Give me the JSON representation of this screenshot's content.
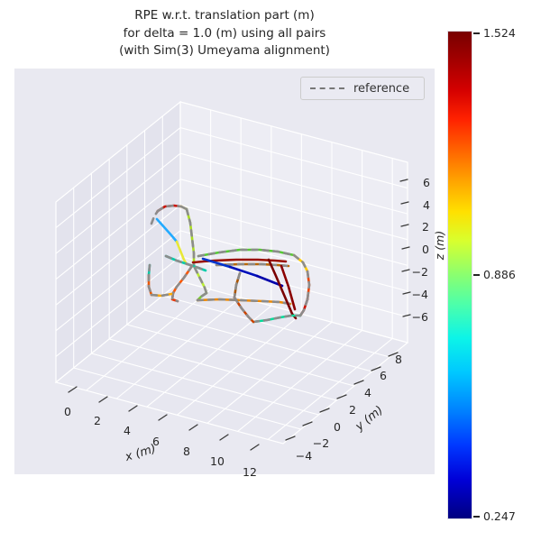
{
  "title_lines": [
    "RPE w.r.t. translation part (m)",
    "for delta = 1.0 (m) using all pairs",
    "(with Sim(3) Umeyama alignment)"
  ],
  "legend": {
    "items": [
      {
        "label": "reference",
        "line_style": "dashed",
        "color": "#777777"
      }
    ]
  },
  "chart_data": {
    "type": "line",
    "plot_kind": "3d-trajectory-colormapped",
    "title": "RPE w.r.t. translation part (m) for delta = 1.0 (m) using all pairs (with Sim(3) Umeyama alignment)",
    "xlabel": "x (m)",
    "ylabel": "y (m)",
    "zlabel": "z (m)",
    "x_ticks": [
      "0",
      "2",
      "4",
      "6",
      "8",
      "10",
      "12"
    ],
    "y_ticks": [
      "−4",
      "−2",
      "0",
      "2",
      "4",
      "6",
      "8"
    ],
    "z_ticks": [
      "6",
      "4",
      "2",
      "0",
      "−2",
      "−4",
      "−6"
    ],
    "x_range": [
      0,
      12
    ],
    "y_range": [
      -4,
      8
    ],
    "z_range": [
      -6,
      6
    ],
    "grid": true,
    "legend_position": "upper right",
    "colorbar": {
      "colormap": "jet",
      "max": 1.524,
      "mid": 0.886,
      "min": 0.247,
      "labels": [
        "1.524",
        "0.886",
        "0.247"
      ]
    },
    "series_note": "estimate trajectory colored by RPE value; reference trajectory gray dashed",
    "segments": [
      {
        "c": "#999999",
        "mode": "ref",
        "pts": [
          [
            168,
            248
          ],
          [
            171,
            240
          ],
          [
            175,
            234
          ]
        ]
      },
      {
        "c": "#cc1100",
        "mode": "both",
        "pts": [
          [
            175,
            234
          ],
          [
            183,
            229
          ],
          [
            193,
            228
          ],
          [
            201,
            229
          ]
        ]
      },
      {
        "c": "#ffdd00",
        "mode": "both",
        "pts": [
          [
            201,
            229
          ],
          [
            207,
            232
          ]
        ]
      },
      {
        "c": "#aadd22",
        "mode": "both",
        "pts": [
          [
            207,
            232
          ],
          [
            211,
            247
          ],
          [
            213,
            264
          ],
          [
            215,
            281
          ],
          [
            215,
            295
          ]
        ]
      },
      {
        "c": "#22aaff",
        "mode": "solid",
        "pts": [
          [
            174,
            243
          ],
          [
            183,
            253
          ],
          [
            191,
            262
          ],
          [
            196,
            268
          ]
        ]
      },
      {
        "c": "#e8e838",
        "mode": "solid",
        "pts": [
          [
            196,
            268
          ],
          [
            200,
            278
          ],
          [
            204,
            288
          ],
          [
            207,
            293
          ]
        ]
      },
      {
        "c": "#00ccaa",
        "mode": "both",
        "pts": [
          [
            184,
            284
          ],
          [
            196,
            289
          ],
          [
            208,
            293
          ],
          [
            220,
            297
          ],
          [
            228,
            300
          ]
        ]
      },
      {
        "c": "#ff5500",
        "mode": "both",
        "pts": [
          [
            213,
            295
          ],
          [
            204,
            308
          ],
          [
            196,
            318
          ],
          [
            192,
            325
          ]
        ]
      },
      {
        "c": "#ee3300",
        "mode": "both",
        "pts": [
          [
            192,
            325
          ],
          [
            191,
            332
          ],
          [
            197,
            334
          ]
        ]
      },
      {
        "c": "#00ccaa",
        "mode": "both",
        "pts": [
          [
            166,
            294
          ],
          [
            165,
            305
          ]
        ]
      },
      {
        "c": "#ee5500",
        "mode": "both",
        "pts": [
          [
            165,
            305
          ],
          [
            165,
            318
          ],
          [
            168,
            327
          ]
        ]
      },
      {
        "c": "#ffaa00",
        "mode": "both",
        "pts": [
          [
            168,
            327
          ],
          [
            179,
            328
          ],
          [
            190,
            326
          ]
        ]
      },
      {
        "c": "#bbee33",
        "mode": "both",
        "pts": [
          [
            216,
            297
          ],
          [
            222,
            309
          ],
          [
            227,
            319
          ],
          [
            229,
            325
          ]
        ]
      },
      {
        "c": "#77cc33",
        "mode": "both",
        "pts": [
          [
            229,
            325
          ],
          [
            223,
            329
          ],
          [
            219,
            333
          ]
        ]
      },
      {
        "c": "#ee8800",
        "mode": "both",
        "pts": [
          [
            219,
            333
          ],
          [
            243,
            332
          ],
          [
            267,
            333
          ],
          [
            291,
            334
          ],
          [
            310,
            335
          ],
          [
            322,
            337
          ]
        ]
      },
      {
        "c": "#991100",
        "mode": "solid",
        "pts": [
          [
            214,
            291
          ],
          [
            238,
            289
          ],
          [
            262,
            288
          ],
          [
            286,
            288
          ],
          [
            305,
            289
          ],
          [
            317,
            290
          ]
        ]
      },
      {
        "c": "#bb6600",
        "mode": "both",
        "pts": [
          [
            240,
            294
          ],
          [
            266,
            293
          ],
          [
            290,
            293
          ],
          [
            308,
            294
          ],
          [
            320,
            295
          ]
        ]
      },
      {
        "c": "#55cc33",
        "mode": "both",
        "pts": [
          [
            220,
            284
          ],
          [
            243,
            280
          ],
          [
            266,
            277
          ],
          [
            288,
            277
          ],
          [
            308,
            279
          ],
          [
            326,
            283
          ]
        ]
      },
      {
        "c": "#0033cc",
        "mode": "solid",
        "pts": [
          [
            225,
            287
          ],
          [
            255,
            296
          ]
        ]
      },
      {
        "c": "#0011bb",
        "mode": "solid",
        "pts": [
          [
            255,
            296
          ],
          [
            285,
            306
          ]
        ]
      },
      {
        "c": "#0000aa",
        "mode": "solid",
        "pts": [
          [
            285,
            306
          ],
          [
            313,
            317
          ]
        ]
      },
      {
        "c": "#7a0000",
        "mode": "solid",
        "pts": [
          [
            298,
            288
          ],
          [
            306,
            306
          ],
          [
            315,
            327
          ],
          [
            324,
            348
          ],
          [
            328,
            353
          ]
        ]
      },
      {
        "c": "#8b0000",
        "mode": "solid",
        "pts": [
          [
            312,
            295
          ],
          [
            320,
            318
          ],
          [
            327,
            343
          ]
        ]
      },
      {
        "c": "#ffcc00",
        "mode": "both",
        "pts": [
          [
            326,
            283
          ],
          [
            336,
            291
          ],
          [
            341,
            301
          ]
        ]
      },
      {
        "c": "#ee4400",
        "mode": "both",
        "pts": [
          [
            341,
            301
          ],
          [
            343,
            316
          ],
          [
            341,
            332
          ]
        ]
      },
      {
        "c": "#cc1100",
        "mode": "both",
        "pts": [
          [
            341,
            332
          ],
          [
            337,
            344
          ],
          [
            333,
            350
          ]
        ]
      },
      {
        "c": "#00dd99",
        "mode": "both",
        "pts": [
          [
            281,
            357
          ],
          [
            296,
            355
          ],
          [
            311,
            352
          ],
          [
            323,
            350
          ],
          [
            333,
            350
          ]
        ]
      },
      {
        "c": "#aa5500",
        "mode": "both",
        "pts": [
          [
            266,
            303
          ],
          [
            262,
            316
          ],
          [
            260,
            330
          ]
        ]
      },
      {
        "c": "#cc4400",
        "mode": "both",
        "pts": [
          [
            260,
            330
          ],
          [
            268,
            342
          ],
          [
            276,
            352
          ],
          [
            281,
            357
          ]
        ]
      }
    ]
  }
}
